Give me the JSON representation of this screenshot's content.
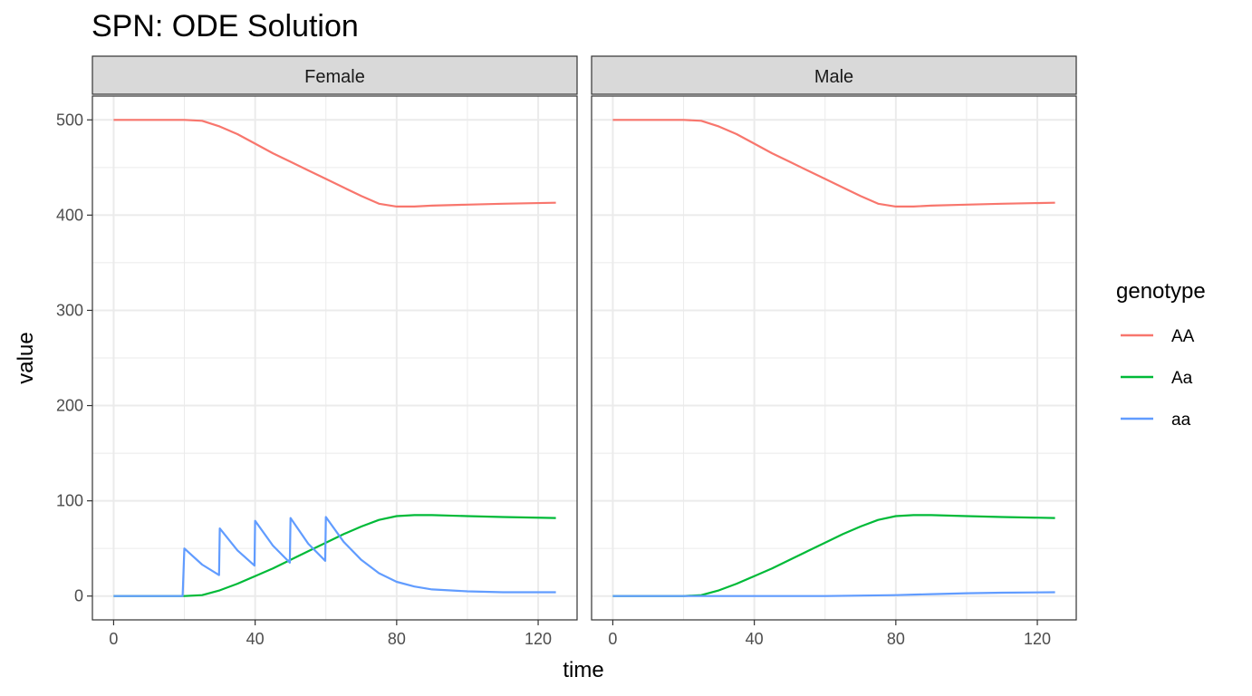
{
  "chart_data": {
    "type": "line",
    "title": "SPN: ODE Solution",
    "xlabel": "time",
    "ylabel": "value",
    "xlim": [
      -6,
      131
    ],
    "ylim": [
      -25,
      525
    ],
    "x_ticks": [
      0,
      40,
      80,
      120
    ],
    "x_tick_labels": [
      "0",
      "40",
      "80",
      "120"
    ],
    "y_ticks": [
      0,
      100,
      200,
      300,
      400,
      500
    ],
    "y_tick_labels": [
      "0",
      "100",
      "200",
      "300",
      "400",
      "500"
    ],
    "grid": true,
    "legend": {
      "title": "genotype",
      "position": "right",
      "entries": [
        {
          "label": "AA",
          "color": "#F8766D"
        },
        {
          "label": "Aa",
          "color": "#00BA38"
        },
        {
          "label": "aa",
          "color": "#619CFF"
        }
      ]
    },
    "panels": [
      {
        "label": "Female",
        "series": [
          {
            "name": "AA",
            "color": "#F8766D",
            "points": [
              [
                0,
                500
              ],
              [
                20,
                500
              ],
              [
                25,
                499
              ],
              [
                30,
                493
              ],
              [
                35,
                485
              ],
              [
                40,
                475
              ],
              [
                45,
                465
              ],
              [
                50,
                456
              ],
              [
                55,
                447
              ],
              [
                60,
                438
              ],
              [
                65,
                429
              ],
              [
                70,
                420
              ],
              [
                75,
                412
              ],
              [
                80,
                409
              ],
              [
                85,
                409
              ],
              [
                90,
                410
              ],
              [
                100,
                411
              ],
              [
                110,
                412
              ],
              [
                125,
                413
              ]
            ]
          },
          {
            "name": "Aa",
            "color": "#00BA38",
            "points": [
              [
                0,
                0
              ],
              [
                20,
                0
              ],
              [
                25,
                1
              ],
              [
                30,
                6
              ],
              [
                35,
                13
              ],
              [
                40,
                21
              ],
              [
                45,
                29
              ],
              [
                50,
                38
              ],
              [
                55,
                47
              ],
              [
                60,
                56
              ],
              [
                65,
                65
              ],
              [
                70,
                73
              ],
              [
                75,
                80
              ],
              [
                80,
                84
              ],
              [
                85,
                85
              ],
              [
                90,
                85
              ],
              [
                100,
                84
              ],
              [
                110,
                83
              ],
              [
                125,
                82
              ]
            ]
          },
          {
            "name": "aa",
            "color": "#619CFF",
            "points": [
              [
                0,
                0
              ],
              [
                19.5,
                0
              ],
              [
                20,
                50
              ],
              [
                25,
                33
              ],
              [
                29.8,
                22
              ],
              [
                30,
                71
              ],
              [
                35,
                48
              ],
              [
                39.8,
                32
              ],
              [
                40,
                79
              ],
              [
                45,
                53
              ],
              [
                49.8,
                35
              ],
              [
                50,
                82
              ],
              [
                55,
                55
              ],
              [
                59.8,
                37
              ],
              [
                60,
                83
              ],
              [
                65,
                57
              ],
              [
                70,
                38
              ],
              [
                75,
                24
              ],
              [
                80,
                15
              ],
              [
                85,
                10
              ],
              [
                90,
                7
              ],
              [
                100,
                5
              ],
              [
                110,
                4
              ],
              [
                125,
                4
              ]
            ]
          }
        ]
      },
      {
        "label": "Male",
        "series": [
          {
            "name": "AA",
            "color": "#F8766D",
            "points": [
              [
                0,
                500
              ],
              [
                20,
                500
              ],
              [
                25,
                499
              ],
              [
                30,
                493
              ],
              [
                35,
                485
              ],
              [
                40,
                475
              ],
              [
                45,
                465
              ],
              [
                50,
                456
              ],
              [
                55,
                447
              ],
              [
                60,
                438
              ],
              [
                65,
                429
              ],
              [
                70,
                420
              ],
              [
                75,
                412
              ],
              [
                80,
                409
              ],
              [
                85,
                409
              ],
              [
                90,
                410
              ],
              [
                100,
                411
              ],
              [
                110,
                412
              ],
              [
                125,
                413
              ]
            ]
          },
          {
            "name": "Aa",
            "color": "#00BA38",
            "points": [
              [
                0,
                0
              ],
              [
                20,
                0
              ],
              [
                25,
                1
              ],
              [
                30,
                6
              ],
              [
                35,
                13
              ],
              [
                40,
                21
              ],
              [
                45,
                29
              ],
              [
                50,
                38
              ],
              [
                55,
                47
              ],
              [
                60,
                56
              ],
              [
                65,
                65
              ],
              [
                70,
                73
              ],
              [
                75,
                80
              ],
              [
                80,
                84
              ],
              [
                85,
                85
              ],
              [
                90,
                85
              ],
              [
                100,
                84
              ],
              [
                110,
                83
              ],
              [
                125,
                82
              ]
            ]
          },
          {
            "name": "aa",
            "color": "#619CFF",
            "points": [
              [
                0,
                0
              ],
              [
                40,
                0
              ],
              [
                60,
                0
              ],
              [
                70,
                0.5
              ],
              [
                80,
                1
              ],
              [
                90,
                2
              ],
              [
                100,
                3
              ],
              [
                110,
                3.5
              ],
              [
                125,
                4
              ]
            ]
          }
        ]
      }
    ]
  }
}
